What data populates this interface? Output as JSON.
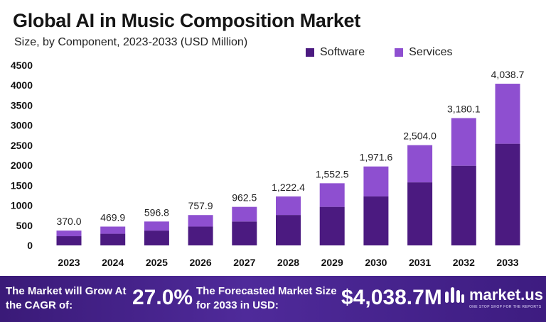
{
  "title": "Global AI in Music Composition Market",
  "subtitle": "Size, by Component, 2023-2033 (USD Million)",
  "colors": {
    "software": "#4b1a80",
    "services": "#8e4fd0",
    "footer": "#3f1e86"
  },
  "legend": {
    "software": "Software",
    "services": "Services"
  },
  "chart_data": {
    "type": "bar",
    "stacked": true,
    "categories": [
      "2023",
      "2024",
      "2025",
      "2026",
      "2027",
      "2028",
      "2029",
      "2030",
      "2031",
      "2032",
      "2033"
    ],
    "series": [
      {
        "name": "Software",
        "values": [
          230,
          291,
          370,
          470,
          597,
          760,
          963,
          1224,
          1575,
          1990,
          2540
        ]
      },
      {
        "name": "Services",
        "values": [
          140,
          178.9,
          226.8,
          287.9,
          365.5,
          462.4,
          589.5,
          747.6,
          929,
          1190.1,
          1498.7
        ]
      }
    ],
    "totals_labels": [
      "370.0",
      "469.9",
      "596.8",
      "757.9",
      "962.5",
      "1,222.4",
      "1,552.5",
      "1,971.6",
      "2,504.0",
      "3,180.1",
      "4,038.7"
    ],
    "yticks": [
      0,
      500,
      1000,
      1500,
      2000,
      2500,
      3000,
      3500,
      4000,
      4500
    ],
    "ylim": [
      0,
      4500
    ],
    "grid": false,
    "legend_position": "top-right"
  },
  "footer": {
    "cagr_label": "The Market will Grow At the CAGR of:",
    "cagr_value": "27.0%",
    "forecast_label": "The Forecasted Market Size for 2033 in USD:",
    "forecast_value": "$4,038.7M",
    "brand": "market.us",
    "tagline": "ONE STOP SHOP FOR THE REPORTS"
  }
}
